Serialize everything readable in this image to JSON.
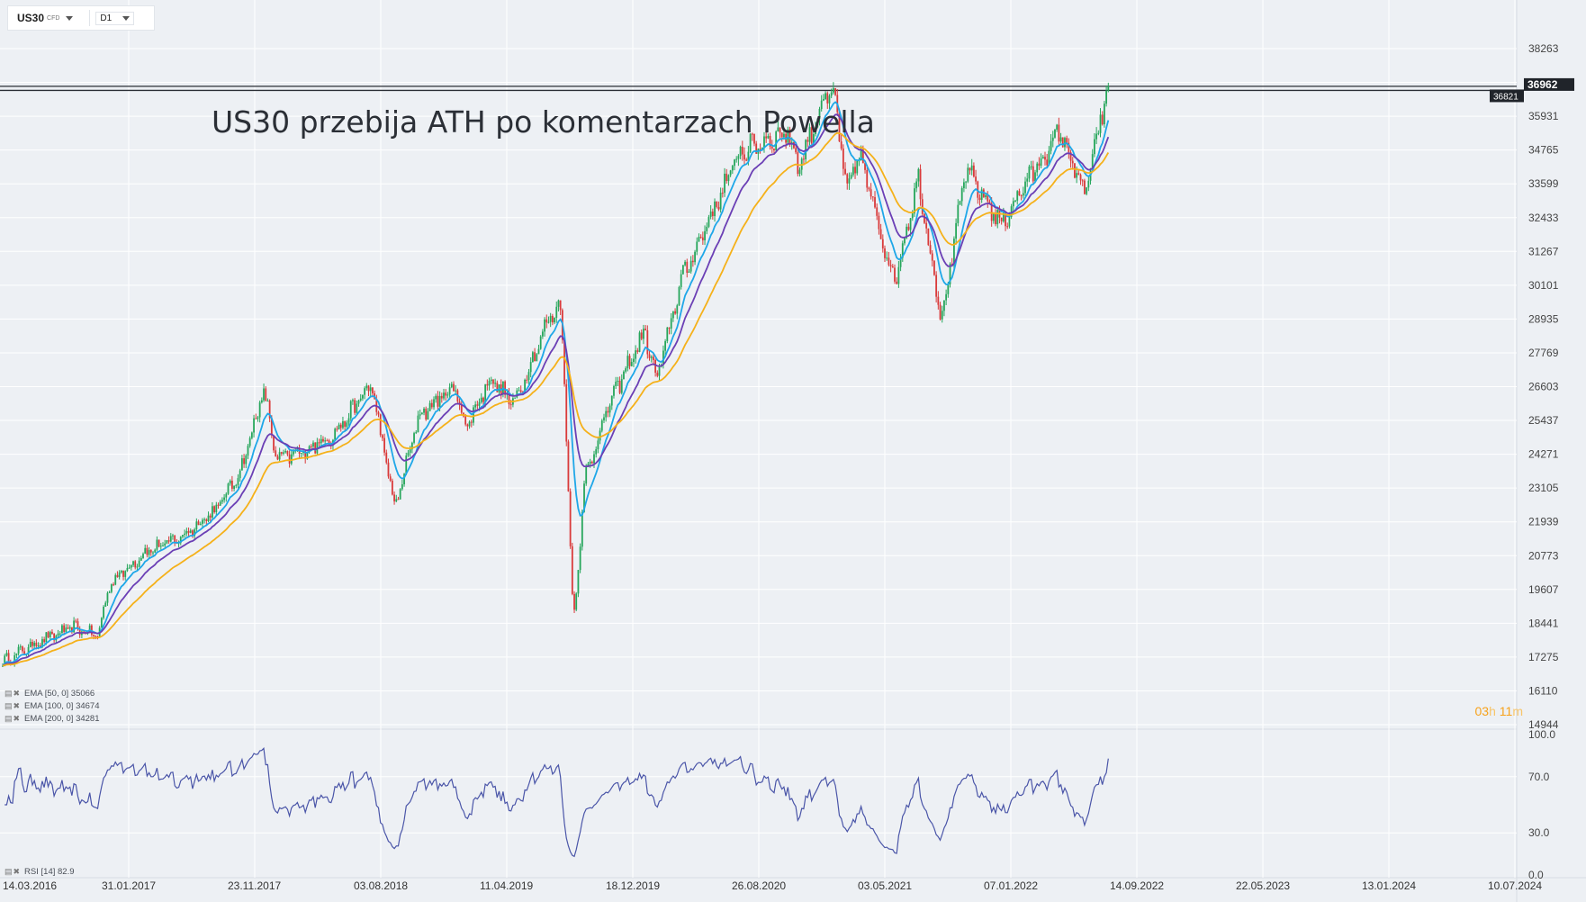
{
  "header": {
    "symbol": "US30",
    "symbol_type": "CFD",
    "timeframe": "D1"
  },
  "title": "US30 przebija ATH po komentarzach Powella",
  "indicators": {
    "ema50": "EMA [50, 0] 35066",
    "ema100": "EMA [100, 0] 34674",
    "ema200": "EMA [200, 0] 34281",
    "rsi": "RSI [14] 82.9"
  },
  "countdown": {
    "hours": "03",
    "h": "h",
    "minutes": "11",
    "m": "m"
  },
  "colors": {
    "bull": "#26a65b",
    "bear": "#d93a3a",
    "ema50": "#1ea7e8",
    "ema100": "#6b3fb5",
    "ema200": "#f5b11a",
    "rsi": "#4a55a8",
    "label_bg": "#20242a"
  },
  "chart_data": {
    "type": "candlestick",
    "title": "US30 przebija ATH po komentarzach Powella",
    "x_tick_labels": [
      "14.03.2016",
      "31.01.2017",
      "23.11.2017",
      "03.08.2018",
      "11.04.2019",
      "18.12.2019",
      "26.08.2020",
      "03.05.2021",
      "07.01.2022",
      "14.09.2022",
      "22.05.2023",
      "13.01.2024",
      "10.07.2024"
    ],
    "y_tick_labels": [
      "38263",
      "37097",
      "35931",
      "34765",
      "33599",
      "32433",
      "31267",
      "30101",
      "28935",
      "27769",
      "26603",
      "25437",
      "24271",
      "23105",
      "21939",
      "20773",
      "19607",
      "18441",
      "17275",
      "16110",
      "14944"
    ],
    "ylim": [
      14944,
      38263
    ],
    "close_path": [
      [
        "2016-03",
        17100
      ],
      [
        "2016-06",
        17800
      ],
      [
        "2016-09",
        18300
      ],
      [
        "2016-11",
        18000
      ],
      [
        "2016-12",
        19800
      ],
      [
        "2017-03",
        20900
      ],
      [
        "2017-06",
        21400
      ],
      [
        "2017-09",
        22400
      ],
      [
        "2017-11",
        23700
      ],
      [
        "2018-01",
        26500
      ],
      [
        "2018-02",
        24100
      ],
      [
        "2018-04",
        24300
      ],
      [
        "2018-07",
        25000
      ],
      [
        "2018-10",
        26700
      ],
      [
        "2018-12",
        22400
      ],
      [
        "2019-02",
        25600
      ],
      [
        "2019-05",
        26600
      ],
      [
        "2019-06",
        25200
      ],
      [
        "2019-08",
        26900
      ],
      [
        "2019-10",
        26000
      ],
      [
        "2020-01",
        29000
      ],
      [
        "2020-02",
        29400
      ],
      [
        "2020-03",
        18400
      ],
      [
        "2020-04",
        23500
      ],
      [
        "2020-06",
        26000
      ],
      [
        "2020-09",
        28500
      ],
      [
        "2020-10",
        26800
      ],
      [
        "2020-12",
        30200
      ],
      [
        "2021-05",
        34700
      ],
      [
        "2021-09",
        35400
      ],
      [
        "2021-10",
        34200
      ],
      [
        "2021-12",
        36500
      ],
      [
        "2022-01",
        36600
      ],
      [
        "2022-02",
        33200
      ],
      [
        "2022-03",
        34700
      ],
      [
        "2022-06",
        30200
      ],
      [
        "2022-08",
        33800
      ],
      [
        "2022-10",
        28900
      ],
      [
        "2022-12",
        34100
      ],
      [
        "2023-03",
        32200
      ],
      [
        "2023-05",
        33600
      ],
      [
        "2023-08",
        35400
      ],
      [
        "2023-10",
        33200
      ],
      [
        "2023-12",
        36962
      ]
    ],
    "series": [
      {
        "name": "EMA [50, 0]",
        "last": 35066
      },
      {
        "name": "EMA [100, 0]",
        "last": 34674
      },
      {
        "name": "EMA [200, 0]",
        "last": 34281
      }
    ],
    "horizontal_lines": [
      36821,
      36962
    ],
    "price_labels": [
      "36821",
      "36962"
    ],
    "rsi": {
      "name": "RSI [14]",
      "last": 82.9,
      "ylim": [
        0,
        100
      ],
      "tick_labels": [
        "100.0",
        "70.0",
        "30.0",
        "0.0"
      ]
    }
  }
}
